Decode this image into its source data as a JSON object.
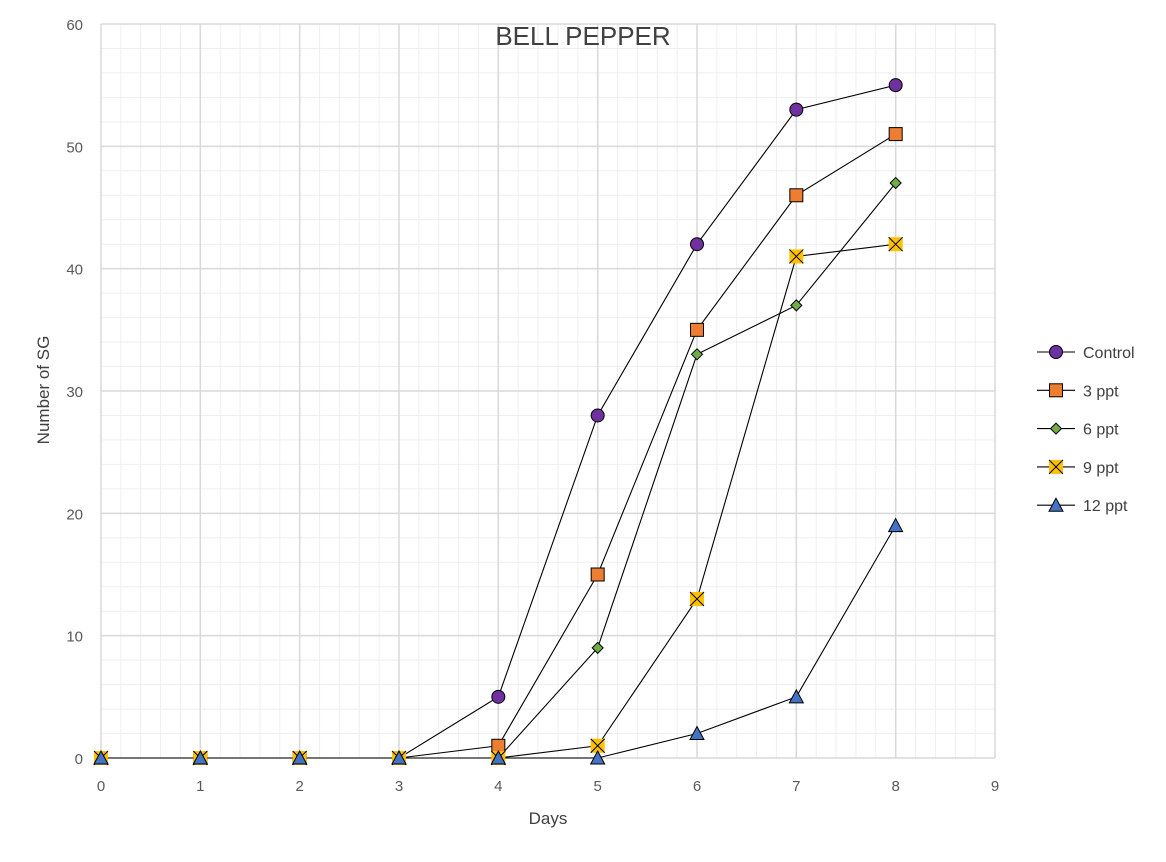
{
  "chart_data": {
    "type": "line",
    "title": "BELL PEPPER",
    "xlabel": "Days",
    "ylabel": "Number of SG",
    "xlim": [
      0,
      9
    ],
    "ylim": [
      0,
      60
    ],
    "x_ticks": [
      "0",
      "1",
      "2",
      "3",
      "4",
      "5",
      "6",
      "7",
      "8",
      "9"
    ],
    "y_ticks": [
      "0",
      "10",
      "20",
      "30",
      "40",
      "50",
      "60"
    ],
    "grid": true,
    "legend_position": "right",
    "x": [
      0,
      1,
      2,
      3,
      4,
      5,
      6,
      7,
      8
    ],
    "series": [
      {
        "name": "Control",
        "marker": "circle",
        "color": "#7030A0",
        "values": [
          0,
          0,
          0,
          0,
          5,
          28,
          42,
          53,
          55
        ]
      },
      {
        "name": "3 ppt",
        "marker": "square",
        "color": "#ED7D31",
        "values": [
          0,
          0,
          0,
          0,
          1,
          15,
          35,
          46,
          51
        ]
      },
      {
        "name": "6 ppt",
        "marker": "diamond",
        "color": "#70AD47",
        "values": [
          0,
          0,
          0,
          0,
          0,
          9,
          33,
          37,
          47
        ]
      },
      {
        "name": "9 ppt",
        "marker": "x-box",
        "color": "#FFC000",
        "values": [
          0,
          0,
          0,
          0,
          0,
          1,
          13,
          41,
          42
        ]
      },
      {
        "name": "12 ppt",
        "marker": "triangle",
        "color": "#4472C4",
        "values": [
          0,
          0,
          0,
          0,
          0,
          0,
          2,
          5,
          19
        ]
      }
    ]
  }
}
